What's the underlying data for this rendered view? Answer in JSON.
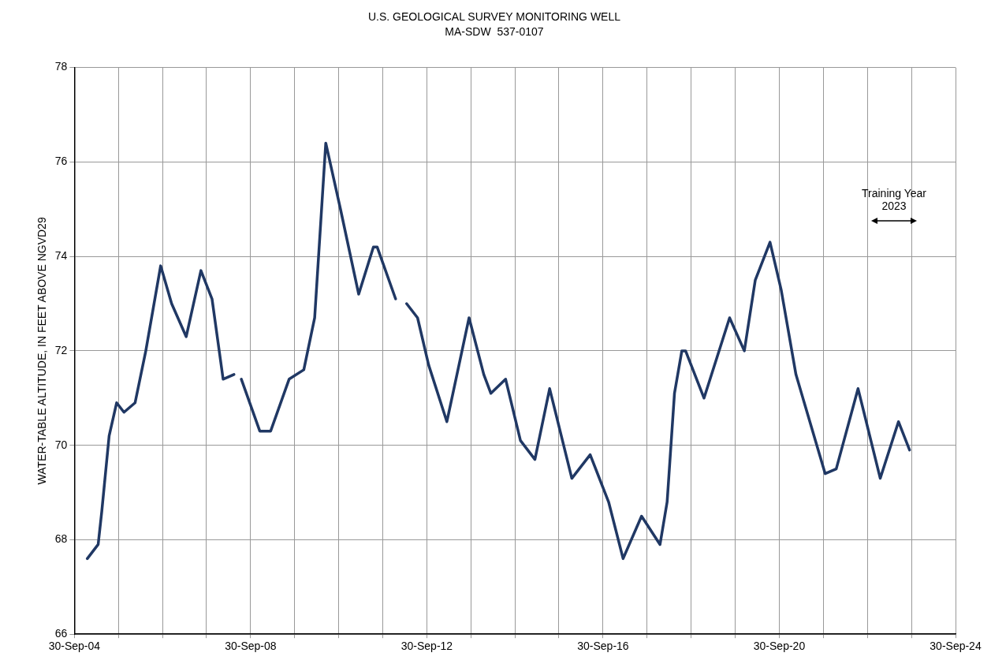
{
  "chart_data": {
    "type": "line",
    "title": "U.S. GEOLOGICAL SURVEY MONITORING WELL",
    "subtitle": "MA-SDW  537-0107",
    "ylabel": "WATER-TABLE ALTITUDE, IN FEET ABOVE NGVD29",
    "x": [
      "2005-01",
      "2005-04",
      "2005-05",
      "2005-07",
      "2005-09",
      "2005-11",
      "2006-02",
      "2006-05",
      "2006-09",
      "2006-12",
      "2007-04",
      "2007-08",
      "2007-11",
      "2008-02",
      "2008-05",
      "2008-06",
      "2008-07",
      "2008-12",
      "2009-03",
      "2009-08",
      "2009-12",
      "2010-03",
      "2010-06",
      "2010-10",
      "2011-03",
      "2011-07",
      "2011-08",
      "2012-01",
      "2012-02",
      "2012-04",
      "2012-07",
      "2012-10",
      "2013-03",
      "2013-06",
      "2013-09",
      "2014-01",
      "2014-03",
      "2014-07",
      "2014-11",
      "2015-03",
      "2015-07",
      "2016-01",
      "2016-06",
      "2016-11",
      "2017-03",
      "2017-08",
      "2018-01",
      "2018-03",
      "2018-05",
      "2018-07",
      "2018-08",
      "2019-01",
      "2019-08",
      "2019-12",
      "2020-03",
      "2020-07",
      "2020-10",
      "2021-02",
      "2021-10",
      "2022-01",
      "2022-07",
      "2023-01",
      "2023-06",
      "2023-09"
    ],
    "series": [
      {
        "color": "#203864",
        "values": [
          67.6,
          67.9,
          68.6,
          70.2,
          70.9,
          70.7,
          70.9,
          72.0,
          73.8,
          73.0,
          72.3,
          73.7,
          73.1,
          71.4,
          71.5,
          null,
          71.4,
          70.3,
          70.3,
          71.4,
          71.6,
          72.7,
          76.4,
          75.0,
          73.2,
          74.2,
          74.2,
          73.1,
          null,
          73.0,
          72.7,
          71.7,
          70.5,
          71.6,
          72.7,
          71.5,
          71.1,
          71.4,
          70.1,
          69.7,
          71.2,
          69.3,
          69.8,
          68.8,
          67.6,
          68.5,
          67.9,
          68.8,
          71.1,
          72.0,
          72.0,
          71.0,
          72.7,
          72.0,
          73.5,
          74.3,
          73.3,
          71.5,
          69.4,
          69.5,
          71.2,
          69.3,
          70.5,
          69.9
        ]
      }
    ],
    "xlim": [
      "2004-09-30",
      "2024-09-30"
    ],
    "xticks": [
      {
        "value": "2004-09-30",
        "label": "30-Sep-04"
      },
      {
        "value": "2005-09-30",
        "label": null
      },
      {
        "value": "2006-09-30",
        "label": null
      },
      {
        "value": "2007-09-30",
        "label": null
      },
      {
        "value": "2008-09-30",
        "label": "30-Sep-08"
      },
      {
        "value": "2009-09-30",
        "label": null
      },
      {
        "value": "2010-09-30",
        "label": null
      },
      {
        "value": "2011-09-30",
        "label": null
      },
      {
        "value": "2012-09-30",
        "label": "30-Sep-12"
      },
      {
        "value": "2013-09-30",
        "label": null
      },
      {
        "value": "2014-09-30",
        "label": null
      },
      {
        "value": "2015-09-30",
        "label": null
      },
      {
        "value": "2016-09-30",
        "label": "30-Sep-16"
      },
      {
        "value": "2017-09-30",
        "label": null
      },
      {
        "value": "2018-09-30",
        "label": null
      },
      {
        "value": "2019-09-30",
        "label": null
      },
      {
        "value": "2020-09-30",
        "label": "30-Sep-20"
      },
      {
        "value": "2021-09-30",
        "label": null
      },
      {
        "value": "2022-09-30",
        "label": null
      },
      {
        "value": "2023-09-30",
        "label": null
      },
      {
        "value": "2024-09-30",
        "label": "30-Sep-24"
      }
    ],
    "ylim": [
      66,
      78
    ],
    "yticks": [
      66,
      68,
      70,
      72,
      74,
      76,
      78
    ],
    "grid": true,
    "marker": "none",
    "line_style": "solid",
    "annotations": [
      "Training Year 2023"
    ]
  }
}
